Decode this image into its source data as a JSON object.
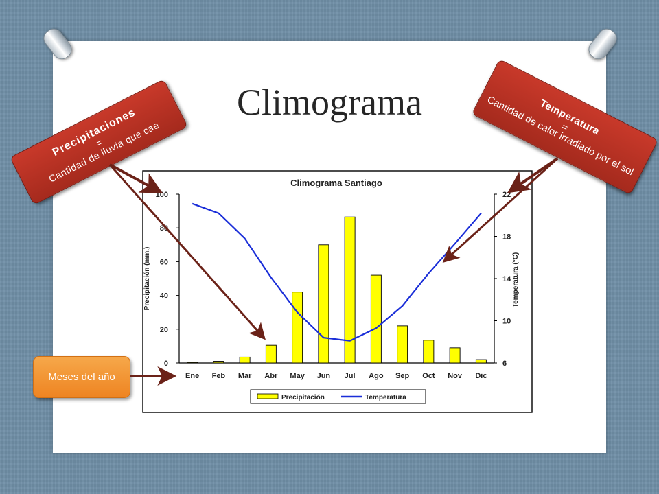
{
  "slide": {
    "title": "Climograma"
  },
  "callouts": {
    "precipitation": {
      "title": "Precipitaciones",
      "equals": "=",
      "description": "Cantidad de lluvia que cae"
    },
    "temperature": {
      "title": "Temperatura",
      "equals": "=",
      "description": "Cantidad de calor irradiado por el sol"
    },
    "months": {
      "label": "Meses del año"
    }
  },
  "colors": {
    "callout_red": "#b33324",
    "callout_orange": "#f29434",
    "arrow": "#6b2218",
    "bar_fill": "#ffff00",
    "line_stroke": "#1a2ed8"
  },
  "chart_data": {
    "type": "bar",
    "title": "Climograma Santiago",
    "categories": [
      "Ene",
      "Feb",
      "Mar",
      "Abr",
      "May",
      "Jun",
      "Jul",
      "Ago",
      "Sep",
      "Oct",
      "Nov",
      "Dic"
    ],
    "ylabel": "Precipitación (mm.)",
    "ylim": [
      0,
      100
    ],
    "yticks": [
      "0",
      "20",
      "40",
      "60",
      "80",
      "100"
    ],
    "y2label": "Temperatura (°C)",
    "y2lim": [
      6,
      22
    ],
    "y2ticks": [
      "6",
      "10",
      "14",
      "18",
      "22"
    ],
    "series": [
      {
        "name": "Precipitación",
        "type": "bar",
        "axis": "left",
        "values": [
          0.4,
          1,
          3.5,
          10.5,
          42,
          70,
          86.5,
          52,
          22,
          13.5,
          9,
          2
        ]
      },
      {
        "name": "Temperatura",
        "type": "line",
        "axis": "right",
        "values": [
          21.1,
          20.2,
          17.8,
          14.1,
          10.8,
          8.4,
          8.1,
          9.3,
          11.4,
          14.5,
          17.3,
          20.2
        ]
      }
    ],
    "legend": "bottom",
    "grid": false
  }
}
